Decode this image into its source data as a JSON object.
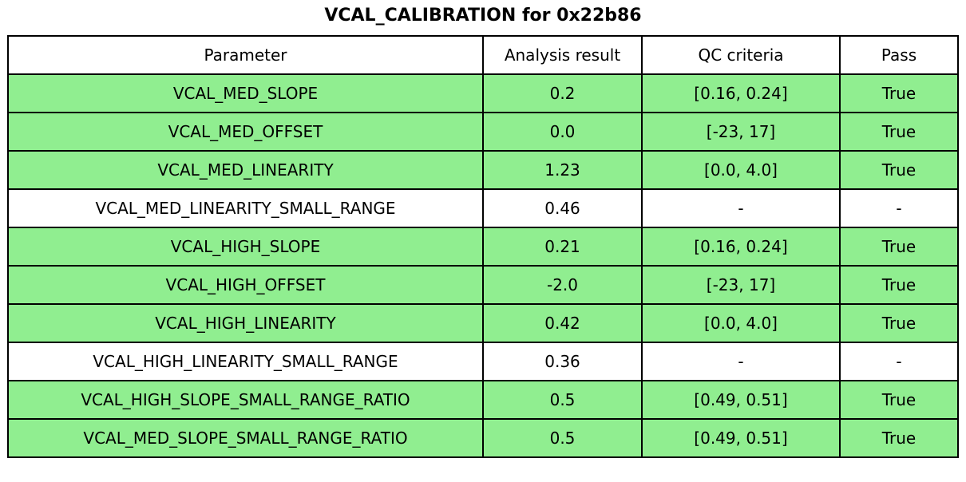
{
  "chart_data": {
    "type": "table",
    "title": "VCAL_CALIBRATION for 0x22b86",
    "columns": [
      "Parameter",
      "Analysis result",
      "QC criteria",
      "Pass"
    ],
    "rows": [
      {
        "parameter": "VCAL_MED_SLOPE",
        "analysis_result": "0.2",
        "qc_criteria": "[0.16, 0.24]",
        "pass": "True",
        "pass_row": true
      },
      {
        "parameter": "VCAL_MED_OFFSET",
        "analysis_result": "0.0",
        "qc_criteria": "[-23, 17]",
        "pass": "True",
        "pass_row": true
      },
      {
        "parameter": "VCAL_MED_LINEARITY",
        "analysis_result": "1.23",
        "qc_criteria": "[0.0, 4.0]",
        "pass": "True",
        "pass_row": true
      },
      {
        "parameter": "VCAL_MED_LINEARITY_SMALL_RANGE",
        "analysis_result": "0.46",
        "qc_criteria": "-",
        "pass": "-",
        "pass_row": false
      },
      {
        "parameter": "VCAL_HIGH_SLOPE",
        "analysis_result": "0.21",
        "qc_criteria": "[0.16, 0.24]",
        "pass": "True",
        "pass_row": true
      },
      {
        "parameter": "VCAL_HIGH_OFFSET",
        "analysis_result": "-2.0",
        "qc_criteria": "[-23, 17]",
        "pass": "True",
        "pass_row": true
      },
      {
        "parameter": "VCAL_HIGH_LINEARITY",
        "analysis_result": "0.42",
        "qc_criteria": "[0.0, 4.0]",
        "pass": "True",
        "pass_row": true
      },
      {
        "parameter": "VCAL_HIGH_LINEARITY_SMALL_RANGE",
        "analysis_result": "0.36",
        "qc_criteria": "-",
        "pass": "-",
        "pass_row": false
      },
      {
        "parameter": "VCAL_HIGH_SLOPE_SMALL_RANGE_RATIO",
        "analysis_result": "0.5",
        "qc_criteria": "[0.49, 0.51]",
        "pass": "True",
        "pass_row": true
      },
      {
        "parameter": "VCAL_MED_SLOPE_SMALL_RANGE_RATIO",
        "analysis_result": "0.5",
        "qc_criteria": "[0.49, 0.51]",
        "pass": "True",
        "pass_row": true
      }
    ],
    "colors": {
      "pass_row_green": "#90ee90",
      "default_row_white": "#ffffff",
      "border_black": "#000000"
    },
    "layout": {
      "legend": "none",
      "grid": "full-cell-borders"
    }
  }
}
